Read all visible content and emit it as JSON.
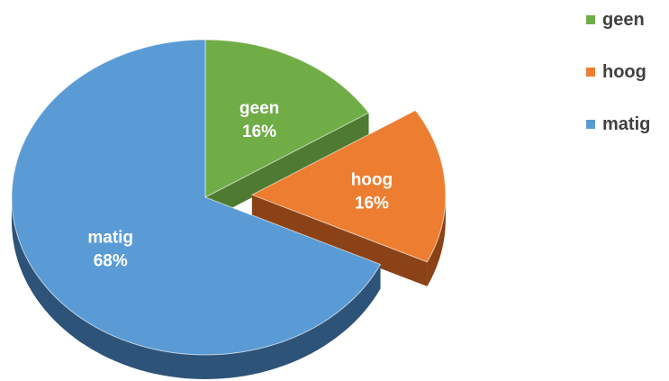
{
  "chart_data": {
    "type": "pie",
    "style": "3d-exploded",
    "legend_position": "top-right",
    "slices": [
      {
        "label": "geen",
        "value": 16,
        "display": "16%",
        "color": "#70AD47",
        "side_color": "#4E7A31",
        "exploded": false
      },
      {
        "label": "hoog",
        "value": 16,
        "display": "16%",
        "color": "#ED7D31",
        "side_color": "#8A4216",
        "exploded": true
      },
      {
        "label": "matig",
        "value": 68,
        "display": "68%",
        "color": "#5B9BD5",
        "side_color": "#2E5378",
        "exploded": false
      }
    ],
    "legend": [
      "geen",
      "hoog",
      "matig"
    ]
  }
}
